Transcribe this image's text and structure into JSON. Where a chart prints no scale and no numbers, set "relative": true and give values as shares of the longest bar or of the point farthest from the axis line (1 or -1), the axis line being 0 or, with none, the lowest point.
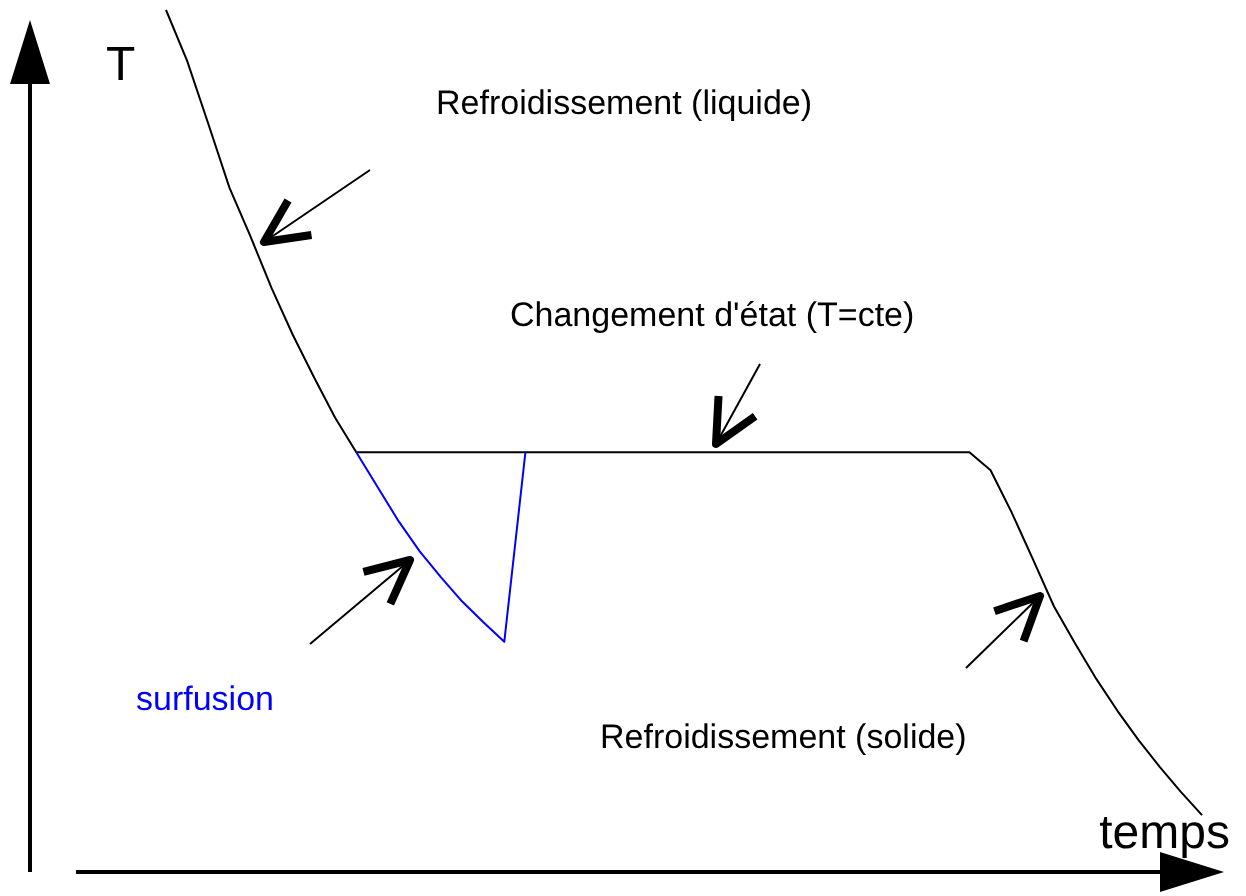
{
  "chart_data": {
    "type": "line",
    "relative": true,
    "xlabel": "temps",
    "ylabel": "T",
    "marker": "none",
    "line_style": "solid",
    "categories": [
      null,
      null,
      null,
      null,
      null,
      null,
      null,
      null,
      null,
      null,
      null,
      null,
      null,
      null,
      null,
      null,
      null,
      null,
      null,
      null,
      null,
      null,
      null,
      null,
      null,
      null,
      null,
      null,
      null,
      null,
      null,
      null,
      null,
      null,
      null,
      null,
      null,
      null,
      null,
      null,
      null,
      null,
      null,
      null,
      null,
      null,
      null,
      null,
      null,
      null
    ],
    "series": [
      {
        "color": "#000000",
        "values": [
          1.0,
          0.941,
          0.868,
          0.794,
          0.737,
          0.677,
          0.623,
          0.574,
          0.527,
          0.487,
          0.487,
          0.487,
          0.487,
          0.487,
          0.487,
          0.487,
          0.487,
          0.487,
          0.487,
          0.487,
          0.487,
          0.487,
          0.487,
          0.487,
          0.487,
          0.487,
          0.487,
          0.487,
          0.487,
          0.487,
          0.487,
          0.487,
          0.487,
          0.487,
          0.487,
          0.487,
          0.487,
          0.487,
          0.487,
          0.466,
          0.417,
          0.363,
          0.308,
          0.265,
          0.224,
          0.187,
          0.153,
          0.122,
          0.093,
          0.066
        ]
      },
      {
        "color": "#0000ff",
        "values": [
          null,
          null,
          null,
          null,
          null,
          null,
          null,
          null,
          null,
          0.487,
          0.447,
          0.407,
          0.372,
          0.342,
          0.314,
          0.29,
          0.267,
          0.487,
          null,
          null,
          null,
          null,
          null,
          null,
          null,
          null,
          null,
          null,
          null,
          null,
          null,
          null,
          null,
          null,
          null,
          null,
          null,
          null,
          null,
          null,
          null,
          null,
          null,
          null,
          null,
          null,
          null,
          null,
          null,
          null
        ]
      }
    ],
    "annotations": [
      "Refroidissement (liquide)",
      "Changement d'état (T=cte)",
      "surfusion",
      "Refroidissement (solide)"
    ]
  }
}
